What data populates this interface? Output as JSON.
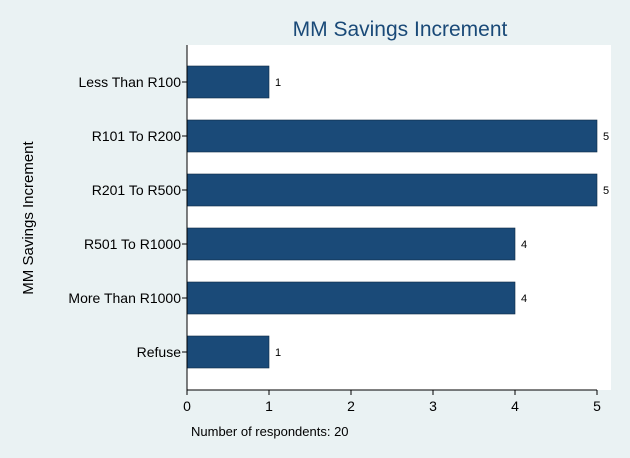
{
  "chart_data": {
    "type": "bar",
    "orientation": "horizontal",
    "title": "MM Savings Increment",
    "ylabel": "MM Savings Increment",
    "xlabel": "",
    "categories": [
      "Less Than R100",
      "R101 To R200",
      "R201 To R500",
      "R501 To R1000",
      "More Than R1000",
      "Refuse"
    ],
    "values": [
      1,
      5,
      5,
      4,
      4,
      1
    ],
    "data_labels": [
      "1",
      "5",
      "5",
      "4",
      "4",
      "1"
    ],
    "xlim": [
      0,
      5
    ],
    "xticks": [
      "0",
      "1",
      "2",
      "3",
      "4",
      "5"
    ],
    "grid": false,
    "bar_color": "#1a4a78",
    "note": "Number of respondents: 20"
  }
}
